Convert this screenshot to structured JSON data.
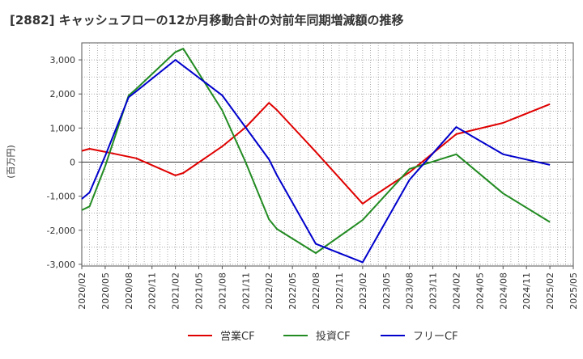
{
  "chart_data": {
    "type": "line",
    "title": "[2882]  キャッシュフローの12か月移動合計の対前年同期増減額の推移",
    "ylabel": "(百万円)",
    "xlabel": "",
    "ylim": [
      -3050,
      3500
    ],
    "yticks": [
      3000,
      2000,
      1000,
      0,
      -1000,
      -2000,
      -3000
    ],
    "ytick_labels": [
      "3,000",
      "2,000",
      "1,000",
      "0",
      "-1,000",
      "-2,000",
      "-3,000"
    ],
    "xlim": [
      "2020/02",
      "2025/05"
    ],
    "xticks": [
      "2020/02",
      "2020/05",
      "2020/08",
      "2020/11",
      "2021/02",
      "2021/05",
      "2021/08",
      "2021/11",
      "2022/02",
      "2022/05",
      "2022/08",
      "2022/11",
      "2023/02",
      "2023/05",
      "2023/08",
      "2023/11",
      "2024/02",
      "2024/05",
      "2024/08",
      "2024/11",
      "2025/02",
      "2025/05"
    ],
    "grid": true,
    "legend_position": "bottom",
    "series": [
      {
        "name": "営業CF",
        "color": "#e00000",
        "points": [
          [
            "2020/02",
            330
          ],
          [
            "2020/03",
            390
          ],
          [
            "2020/05",
            300
          ],
          [
            "2020/09",
            110
          ],
          [
            "2021/02",
            -390
          ],
          [
            "2021/03",
            -320
          ],
          [
            "2021/08",
            460
          ],
          [
            "2021/11",
            1020
          ],
          [
            "2022/02",
            1740
          ],
          [
            "2022/03",
            1530
          ],
          [
            "2022/08",
            300
          ],
          [
            "2023/02",
            -1220
          ],
          [
            "2023/03",
            -1060
          ],
          [
            "2023/08",
            -300
          ],
          [
            "2024/02",
            820
          ],
          [
            "2024/08",
            1150
          ],
          [
            "2025/02",
            1700
          ]
        ]
      },
      {
        "name": "投資CF",
        "color": "#228b22",
        "points": [
          [
            "2020/02",
            -1410
          ],
          [
            "2020/03",
            -1300
          ],
          [
            "2020/05",
            -120
          ],
          [
            "2020/08",
            1950
          ],
          [
            "2020/09",
            2150
          ],
          [
            "2021/02",
            3230
          ],
          [
            "2021/03",
            3330
          ],
          [
            "2021/08",
            1520
          ],
          [
            "2021/11",
            0
          ],
          [
            "2022/02",
            -1680
          ],
          [
            "2022/03",
            -1960
          ],
          [
            "2022/08",
            -2670
          ],
          [
            "2023/02",
            -1700
          ],
          [
            "2023/08",
            -200
          ],
          [
            "2024/02",
            230
          ],
          [
            "2024/08",
            -920
          ],
          [
            "2025/02",
            -1760
          ]
        ]
      },
      {
        "name": "フリーCF",
        "color": "#0000cc",
        "points": [
          [
            "2020/02",
            -1080
          ],
          [
            "2020/03",
            -890
          ],
          [
            "2020/05",
            180
          ],
          [
            "2020/08",
            1900
          ],
          [
            "2020/09",
            2080
          ],
          [
            "2021/02",
            3000
          ],
          [
            "2021/08",
            1960
          ],
          [
            "2022/02",
            80
          ],
          [
            "2022/03",
            -380
          ],
          [
            "2022/08",
            -2400
          ],
          [
            "2023/02",
            -2940
          ],
          [
            "2023/08",
            -520
          ],
          [
            "2024/02",
            1030
          ],
          [
            "2024/08",
            230
          ],
          [
            "2025/02",
            -80
          ]
        ]
      }
    ]
  }
}
